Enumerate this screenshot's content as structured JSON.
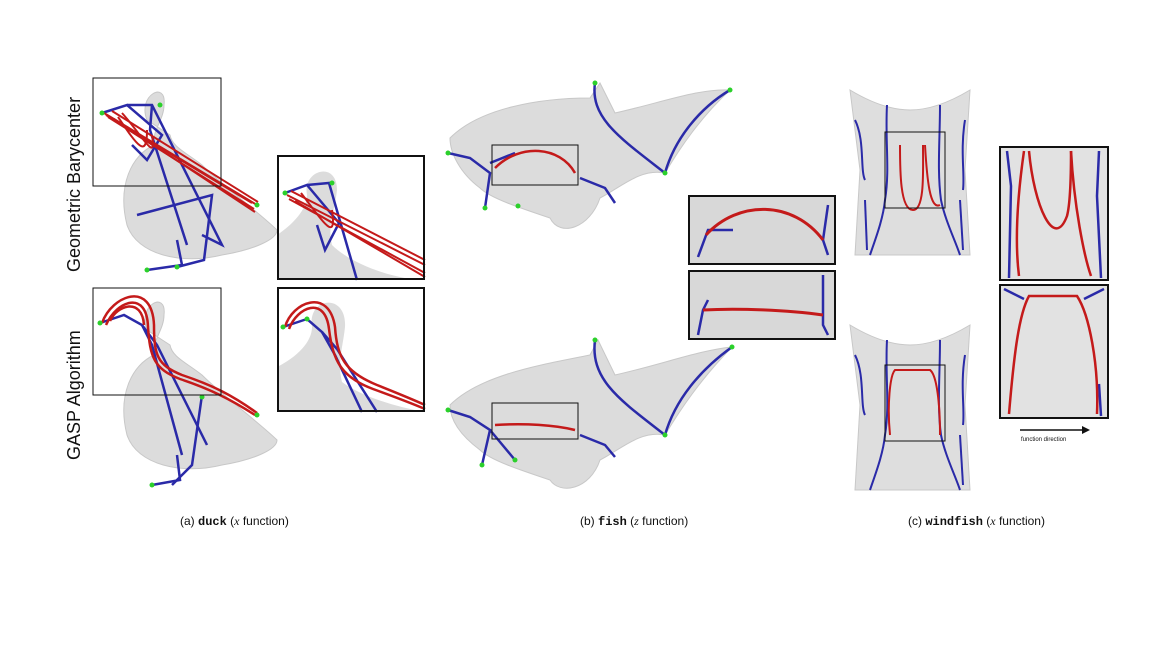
{
  "row_labels": {
    "top": "Geometric Barycenter",
    "bottom": "GASP Algorithm"
  },
  "captions": [
    {
      "prefix": "(a) ",
      "mesh": "duck",
      "open": " (",
      "var": "x",
      "suffix": " function)"
    },
    {
      "prefix": "(b) ",
      "mesh": "fish",
      "open": " (",
      "var": "z",
      "suffix": " function)"
    },
    {
      "prefix": "(c) ",
      "mesh": "windfish",
      "open": " (",
      "var": "x",
      "suffix": " function)"
    }
  ],
  "arrow_label": "function direction",
  "colors": {
    "mesh": "#d9d9d9",
    "skeleton_blue": "#2a2aa8",
    "barycenter_red": "#c41a1a",
    "node_green": "#2bd02b",
    "frame": "#111111"
  }
}
